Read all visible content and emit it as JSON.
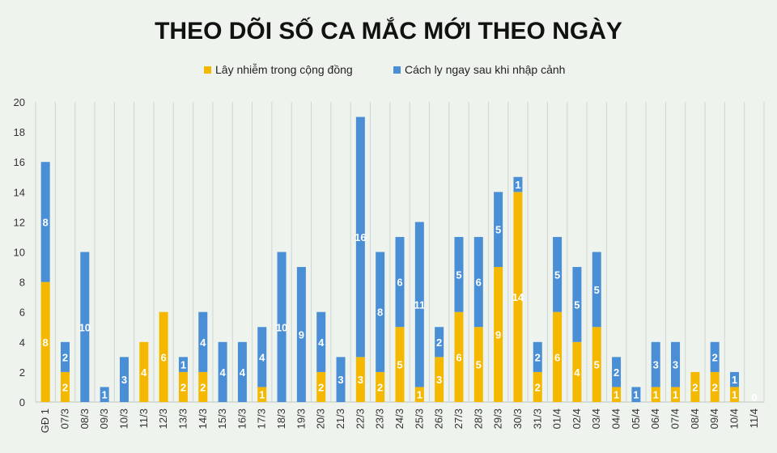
{
  "chart_data": {
    "type": "bar",
    "stacked": true,
    "title": "THEO DÕI SỐ CA MẮC MỚI THEO NGÀY",
    "xlabel": "",
    "ylabel": "",
    "ylim": [
      0,
      20
    ],
    "yticks": [
      0,
      2,
      4,
      6,
      8,
      10,
      12,
      14,
      16,
      18,
      20
    ],
    "grid": "vertical",
    "legend_position": "top",
    "categories": [
      "GĐ 1",
      "07/3",
      "08/3",
      "09/3",
      "10/3",
      "11/3",
      "12/3",
      "13/3",
      "14/3",
      "15/3",
      "16/3",
      "17/3",
      "18/3",
      "19/3",
      "20/3",
      "21/3",
      "22/3",
      "23/3",
      "24/3",
      "25/3",
      "26/3",
      "27/3",
      "28/3",
      "29/3",
      "30/3",
      "31/3",
      "01/4",
      "02/4",
      "03/4",
      "04/4",
      "05/4",
      "06/4",
      "07/4",
      "08/4",
      "09/4",
      "10/4",
      "11/4"
    ],
    "series": [
      {
        "name": "Lây nhiễm trong cộng đồng",
        "color": "#f5b800",
        "values": [
          8,
          2,
          0,
          0,
          0,
          4,
          6,
          2,
          2,
          0,
          0,
          1,
          0,
          0,
          2,
          0,
          3,
          2,
          5,
          1,
          3,
          6,
          5,
          9,
          14,
          2,
          6,
          4,
          5,
          1,
          0,
          1,
          1,
          2,
          2,
          1,
          0
        ],
        "labels": [
          "8",
          "2",
          "",
          "",
          "",
          "4",
          "6",
          "2",
          "2",
          "",
          "",
          "1",
          "",
          "",
          "2",
          "",
          "3",
          "2",
          "5",
          "1",
          "3",
          "6",
          "5",
          "9",
          "14",
          "2",
          "6",
          "4",
          "5",
          "1",
          "",
          "1",
          "1",
          "2",
          "2",
          "1",
          "0"
        ]
      },
      {
        "name": "Cách ly ngay sau khi nhập cảnh",
        "color": "#4a8fd6",
        "values": [
          8,
          2,
          10,
          1,
          3,
          0,
          0,
          1,
          4,
          4,
          4,
          4,
          10,
          9,
          4,
          3,
          16,
          8,
          6,
          11,
          2,
          5,
          6,
          5,
          1,
          2,
          5,
          5,
          5,
          2,
          1,
          3,
          3,
          0,
          2,
          1,
          0
        ],
        "labels": [
          "8",
          "2",
          "10",
          "1",
          "3",
          "",
          "",
          "1",
          "4",
          "4",
          "4",
          "4",
          "10",
          "9",
          "4",
          "3",
          "16",
          "8",
          "6",
          "11",
          "2",
          "5",
          "6",
          "5",
          "1",
          "2",
          "5",
          "5",
          "5",
          "2",
          "1",
          "3",
          "3",
          "",
          "2",
          "1",
          ""
        ]
      }
    ]
  }
}
